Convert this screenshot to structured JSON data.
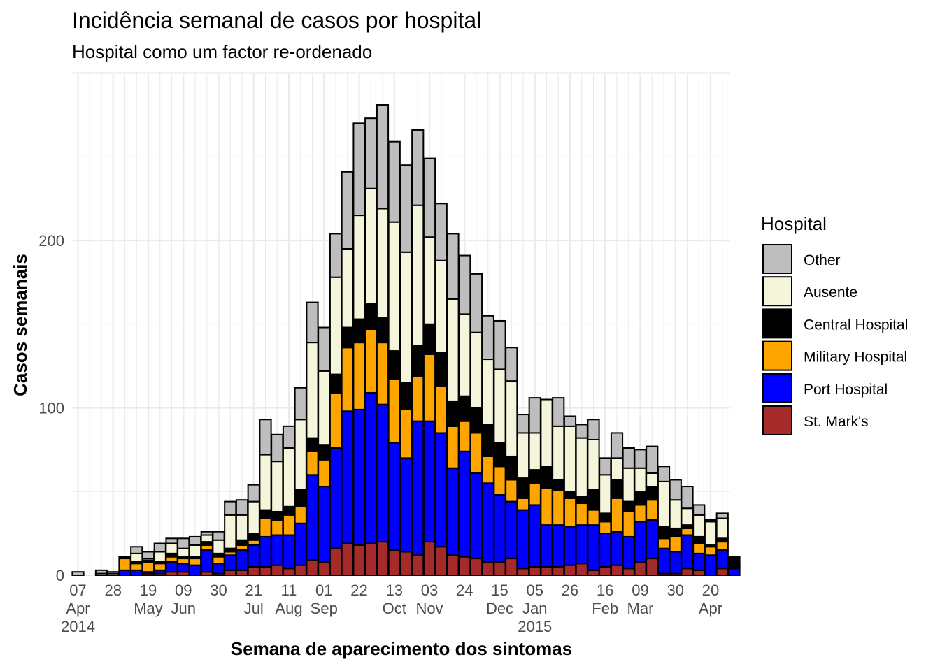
{
  "chart_data": {
    "type": "bar",
    "stacked": true,
    "title": "Incidência semanal de casos por hospital",
    "subtitle": "Hospital como um factor re-ordenado",
    "xlabel": "Semana de aparecimento dos sintomas",
    "ylabel": "Casos semanais",
    "ylim": [
      0,
      300
    ],
    "y_ticks": [
      0,
      100,
      200
    ],
    "grid": true,
    "legend": {
      "title": "Hospital",
      "position": "right"
    },
    "x_ticks": [
      {
        "label": "07\nApr\n2014",
        "week": 0
      },
      {
        "label": "28",
        "week": 3
      },
      {
        "label": "19\nMay",
        "week": 6
      },
      {
        "label": "09\nJun",
        "week": 9
      },
      {
        "label": "30",
        "week": 12
      },
      {
        "label": "21\nJul",
        "week": 15
      },
      {
        "label": "11\nAug",
        "week": 18
      },
      {
        "label": "01\nSep",
        "week": 21
      },
      {
        "label": "22",
        "week": 24
      },
      {
        "label": "13\nOct",
        "week": 27
      },
      {
        "label": "03\nNov",
        "week": 30
      },
      {
        "label": "24",
        "week": 33
      },
      {
        "label": "15\nDec",
        "week": 36
      },
      {
        "label": "05\nJan\n2015",
        "week": 39
      },
      {
        "label": "26",
        "week": 42
      },
      {
        "label": "16\nFeb",
        "week": 45
      },
      {
        "label": "09\nMar",
        "week": 48
      },
      {
        "label": "30",
        "week": 51
      },
      {
        "label": "20\nApr",
        "week": 54
      }
    ],
    "series": [
      {
        "name": "St. Mark's",
        "color": "#A52A2A",
        "values": [
          0,
          0,
          0,
          0,
          0,
          0,
          1,
          1,
          2,
          2,
          0,
          2,
          1,
          3,
          3,
          5,
          5,
          6,
          4,
          6,
          9,
          8,
          16,
          19,
          18,
          19,
          20,
          15,
          14,
          12,
          20,
          17,
          12,
          11,
          10,
          8,
          8,
          10,
          4,
          5,
          5,
          5,
          6,
          7,
          3,
          5,
          6,
          4,
          8,
          10,
          1,
          1,
          4,
          3,
          0,
          4,
          0
        ]
      },
      {
        "name": "Port Hospital",
        "color": "#0000FF",
        "values": [
          0,
          0,
          0,
          0,
          3,
          3,
          1,
          2,
          6,
          5,
          6,
          13,
          6,
          9,
          12,
          13,
          18,
          18,
          20,
          25,
          51,
          45,
          60,
          79,
          81,
          90,
          82,
          64,
          56,
          80,
          72,
          68,
          52,
          63,
          51,
          47,
          40,
          34,
          35,
          37,
          25,
          25,
          23,
          23,
          27,
          20,
          20,
          19,
          24,
          23,
          15,
          13,
          20,
          10,
          12,
          11,
          4
        ]
      },
      {
        "name": "Military Hospital",
        "color": "#FFA500",
        "values": [
          0,
          0,
          0,
          0,
          7,
          4,
          6,
          4,
          3,
          3,
          4,
          3,
          4,
          2,
          3,
          3,
          11,
          9,
          12,
          10,
          14,
          16,
          33,
          38,
          40,
          38,
          37,
          38,
          29,
          27,
          40,
          28,
          25,
          18,
          24,
          16,
          17,
          13,
          7,
          13,
          22,
          21,
          17,
          13,
          9,
          7,
          20,
          15,
          10,
          12,
          6,
          9,
          4,
          6,
          5,
          5,
          1
        ]
      },
      {
        "name": "Central Hospital",
        "color": "#000000",
        "values": [
          0,
          0,
          0,
          0,
          1,
          1,
          1,
          1,
          2,
          1,
          1,
          2,
          2,
          2,
          3,
          4,
          5,
          5,
          5,
          10,
          8,
          9,
          11,
          12,
          14,
          15,
          15,
          17,
          16,
          18,
          18,
          20,
          15,
          15,
          15,
          19,
          14,
          14,
          12,
          8,
          13,
          6,
          4,
          4,
          12,
          5,
          11,
          6,
          8,
          8,
          7,
          5,
          2,
          4,
          1,
          2,
          6
        ]
      },
      {
        "name": "Ausente",
        "color": "#F5F5DC",
        "values": [
          0,
          0,
          1,
          1,
          0,
          5,
          1,
          6,
          6,
          5,
          7,
          4,
          8,
          20,
          15,
          19,
          33,
          30,
          35,
          42,
          57,
          44,
          58,
          47,
          62,
          69,
          65,
          77,
          78,
          84,
          52,
          55,
          61,
          49,
          45,
          39,
          44,
          45,
          27,
          22,
          40,
          32,
          39,
          35,
          30,
          23,
          13,
          20,
          14,
          8,
          27,
          17,
          10,
          13,
          14,
          12,
          0
        ]
      },
      {
        "name": "Other",
        "color": "#BEBEBE",
        "values": [
          2,
          0,
          2,
          1,
          0,
          4,
          4,
          5,
          3,
          6,
          5,
          2,
          5,
          8,
          9,
          10,
          21,
          16,
          13,
          19,
          24,
          26,
          26,
          46,
          55,
          42,
          62,
          48,
          52,
          45,
          47,
          34,
          39,
          35,
          35,
          26,
          29,
          20,
          11,
          21,
          0,
          17,
          6,
          8,
          12,
          10,
          15,
          12,
          11,
          16,
          9,
          12,
          13,
          6,
          1,
          3,
          0
        ]
      }
    ]
  }
}
